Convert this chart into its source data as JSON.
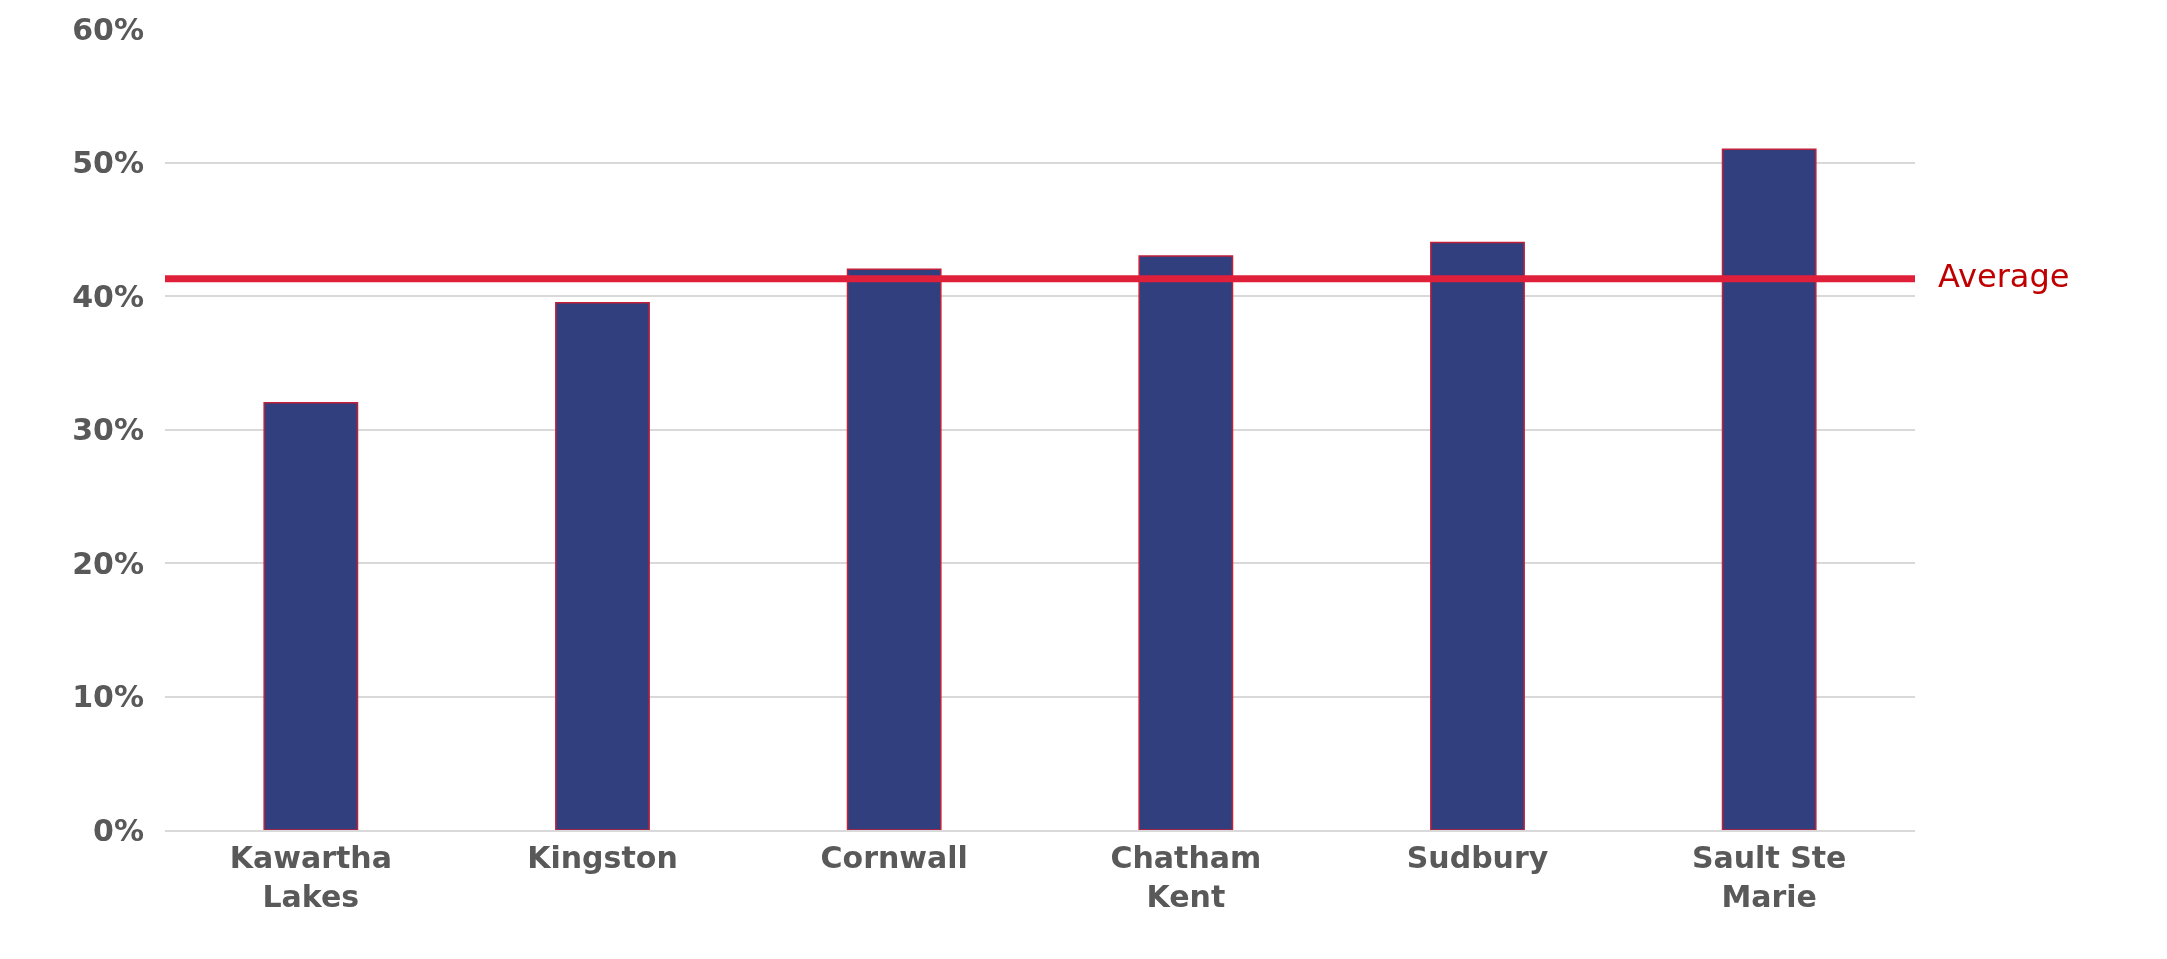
{
  "chart_data": {
    "type": "bar",
    "categories": [
      "Kawartha Lakes",
      "Kingston",
      "Cornwall",
      "Chatham Kent",
      "Sudbury",
      "Sault Ste Marie"
    ],
    "values": [
      32,
      39.5,
      42,
      43,
      44,
      51
    ],
    "color": "#313f7e",
    "ylim": [
      0,
      60
    ],
    "yticks": [
      {
        "value": 0,
        "label": "0%"
      },
      {
        "value": 10,
        "label": "10%"
      },
      {
        "value": 20,
        "label": "20%"
      },
      {
        "value": 30,
        "label": "30%"
      },
      {
        "value": 40,
        "label": "40%"
      },
      {
        "value": 50,
        "label": "50%"
      },
      {
        "value": 60,
        "label": "60%"
      }
    ],
    "grid": "y",
    "legend": false,
    "ref_lines": [
      {
        "axis": "y",
        "value": 41.3,
        "label": "Average",
        "color": "#e0203a",
        "line_style": "solid"
      }
    ]
  }
}
